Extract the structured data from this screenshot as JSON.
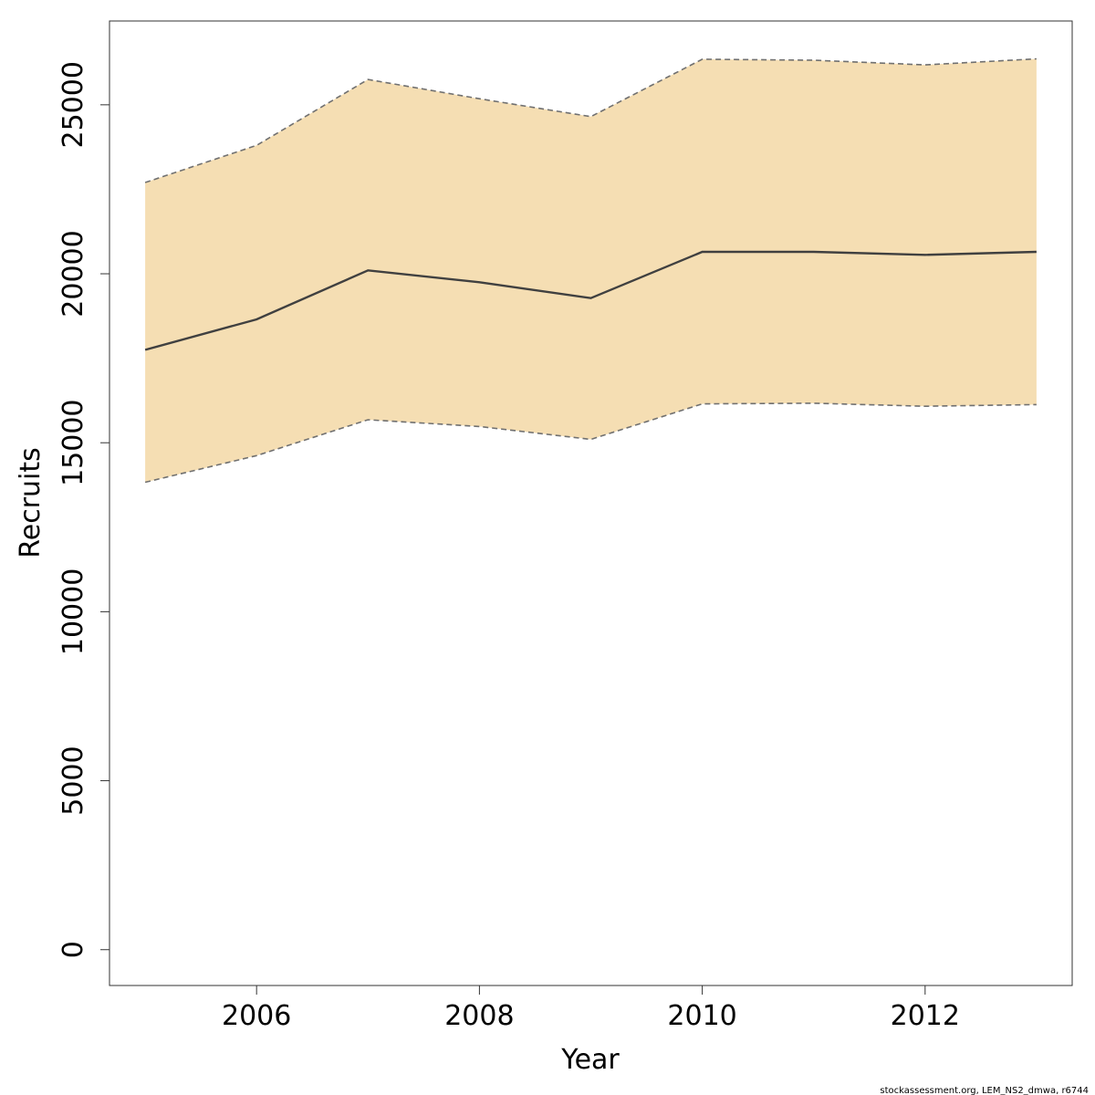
{
  "chart_data": {
    "type": "line",
    "title": "",
    "xlabel": "Year",
    "ylabel": "Recruits",
    "x": [
      2005,
      2006,
      2007,
      2008,
      2009,
      2010,
      2011,
      2012,
      2013
    ],
    "series": [
      {
        "values": [
          17750,
          18650,
          20100,
          19750,
          19280,
          20650,
          20650,
          20560,
          20650
        ],
        "style": "solid"
      },
      {
        "values": [
          22700,
          23800,
          25750,
          25180,
          24650,
          26350,
          26320,
          26180,
          26360
        ],
        "style": "dashed"
      },
      {
        "values": [
          13830,
          14620,
          15680,
          15480,
          15100,
          16150,
          16170,
          16080,
          16130
        ],
        "style": "dashed"
      }
    ],
    "xlim": [
      2004.68,
      2013.32
    ],
    "ylim": [
      -1060,
      27480
    ],
    "xticks": [
      "2006",
      "2008",
      "2010",
      "2012"
    ],
    "yticks": [
      "0",
      "5000",
      "10000",
      "15000",
      "20000",
      "25000"
    ],
    "grid": false,
    "legend": "none",
    "colors": {
      "band_fill": "#f5deb3",
      "line": "#404040",
      "dashed": "#707070",
      "axis": "#333333"
    }
  },
  "footnote": "stockassessment.org, LEM_NS2_dmwa, r6744"
}
